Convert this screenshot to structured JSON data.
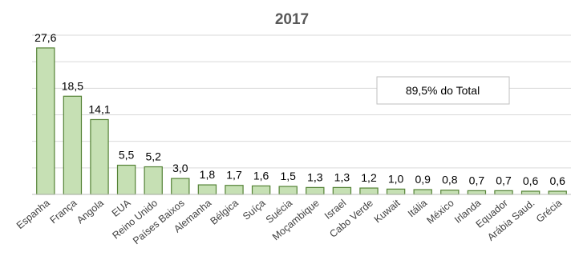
{
  "chart_data": {
    "type": "bar",
    "title": "2017",
    "categories": [
      "Espanha",
      "França",
      "Angola",
      "EUA",
      "Reino Unido",
      "Países Baixos",
      "Alemanha",
      "Bélgica",
      "Suíça",
      "Suécia",
      "Moçambique",
      "Israel",
      "Cabo Verde",
      "Kuwait",
      "Itália",
      "México",
      "Irlanda",
      "Equador",
      "Arábia Saud.",
      "Grécia"
    ],
    "values": [
      27.6,
      18.5,
      14.1,
      5.5,
      5.2,
      3.0,
      1.8,
      1.7,
      1.6,
      1.5,
      1.3,
      1.3,
      1.2,
      1.0,
      0.9,
      0.8,
      0.7,
      0.7,
      0.6,
      0.6
    ],
    "value_labels": [
      "27,6",
      "18,5",
      "14,1",
      "5,5",
      "5,2",
      "3,0",
      "1,8",
      "1,7",
      "1,6",
      "1,5",
      "1,3",
      "1,3",
      "1,2",
      "1,0",
      "0,9",
      "0,8",
      "0,7",
      "0,7",
      "0,6",
      "0,6"
    ],
    "ylim": [
      0,
      30
    ],
    "grid": true,
    "annotation": "89,5% do Total",
    "colors": {
      "bar_fill": "#c6e0b4",
      "bar_stroke": "#548235",
      "grid": "#d9d9d9",
      "axis": "#bfbfbf"
    }
  }
}
